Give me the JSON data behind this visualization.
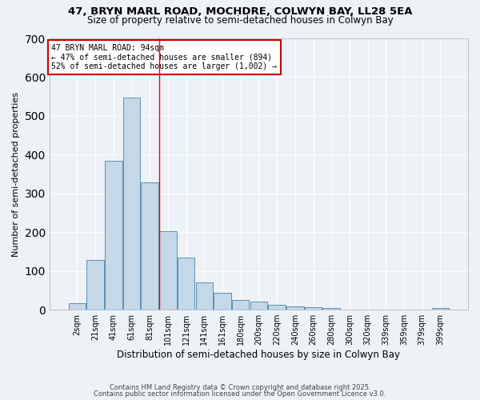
{
  "title1": "47, BRYN MARL ROAD, MOCHDRE, COLWYN BAY, LL28 5EA",
  "title2": "Size of property relative to semi-detached houses in Colwyn Bay",
  "xlabel": "Distribution of semi-detached houses by size in Colwyn Bay",
  "ylabel": "Number of semi-detached properties",
  "bar_labels": [
    "2sqm",
    "21sqm",
    "41sqm",
    "61sqm",
    "81sqm",
    "101sqm",
    "121sqm",
    "141sqm",
    "161sqm",
    "180sqm",
    "200sqm",
    "220sqm",
    "240sqm",
    "260sqm",
    "280sqm",
    "300sqm",
    "320sqm",
    "339sqm",
    "359sqm",
    "379sqm",
    "399sqm"
  ],
  "bar_values": [
    17,
    128,
    385,
    548,
    328,
    202,
    135,
    70,
    44,
    25,
    22,
    12,
    8,
    6,
    4,
    1,
    1,
    0,
    1,
    0,
    5
  ],
  "bar_color": "#c5d8e8",
  "bar_edge_color": "#5590b5",
  "property_label": "47 BRYN MARL ROAD: 94sqm",
  "pct_smaller": 47,
  "pct_larger": 52,
  "n_smaller": 894,
  "n_larger": 1002,
  "vline_x_index": 4.5,
  "annotation_box_color": "#ffffff",
  "annotation_border_color": "#cc0000",
  "ylim": [
    0,
    700
  ],
  "yticks": [
    0,
    100,
    200,
    300,
    400,
    500,
    600,
    700
  ],
  "footer1": "Contains HM Land Registry data © Crown copyright and database right 2025.",
  "footer2": "Contains public sector information licensed under the Open Government Licence v3.0.",
  "background_color": "#eef2f7",
  "grid_color": "#ffffff"
}
